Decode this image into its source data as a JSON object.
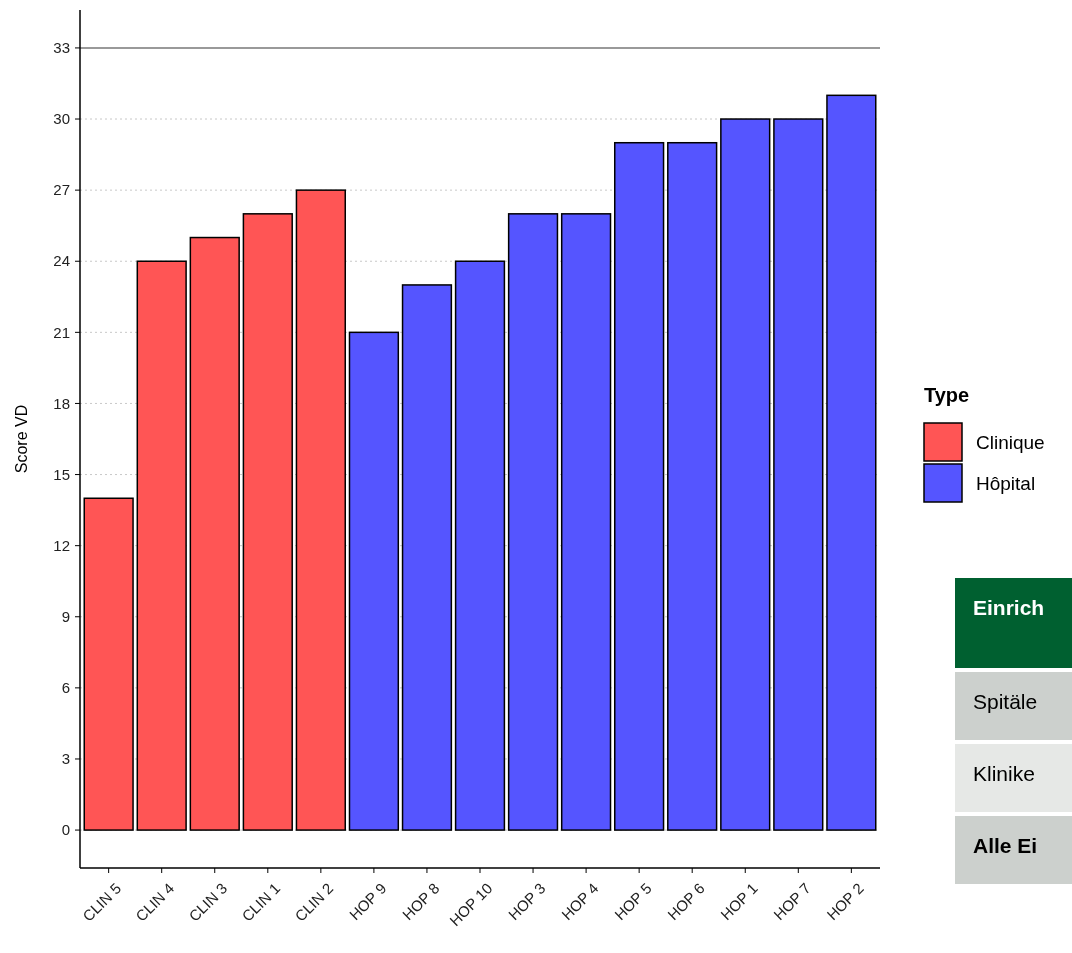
{
  "chart_data": [
    {
      "type": "bar",
      "ylabel": "Score VD",
      "legend_title": "Type",
      "legend": "right",
      "categories": [
        "CLIN 5",
        "CLIN 4",
        "CLIN 3",
        "CLIN 1",
        "CLIN 2",
        "HOP 9",
        "HOP 8",
        "HOP 10",
        "HOP 3",
        "HOP 4",
        "HOP 5",
        "HOP 6",
        "HOP 1",
        "HOP 7",
        "HOP 2"
      ],
      "series": [
        {
          "name": "Clinique",
          "color": "#ff5555",
          "values": [
            14,
            24,
            25,
            26,
            27,
            null,
            null,
            null,
            null,
            null,
            null,
            null,
            null,
            null,
            null
          ]
        },
        {
          "name": "Hôpital",
          "color": "#5555ff",
          "values": [
            null,
            null,
            null,
            null,
            null,
            21,
            23,
            24,
            26,
            26,
            29,
            29,
            30,
            30,
            31
          ]
        }
      ],
      "ylim": [
        -1.6,
        34.6
      ],
      "yticks": [
        0,
        3,
        6,
        9,
        12,
        15,
        18,
        21,
        24,
        27,
        30,
        33
      ],
      "grid": "y",
      "ref_lines": [
        {
          "axis": "y",
          "value": 33,
          "color": "#999999",
          "line_style": "solid"
        }
      ]
    },
    {
      "type": "other",
      "annotations": [
        "Einrich",
        "Spitäle",
        "Klinike",
        "Alle Ei"
      ]
    }
  ]
}
